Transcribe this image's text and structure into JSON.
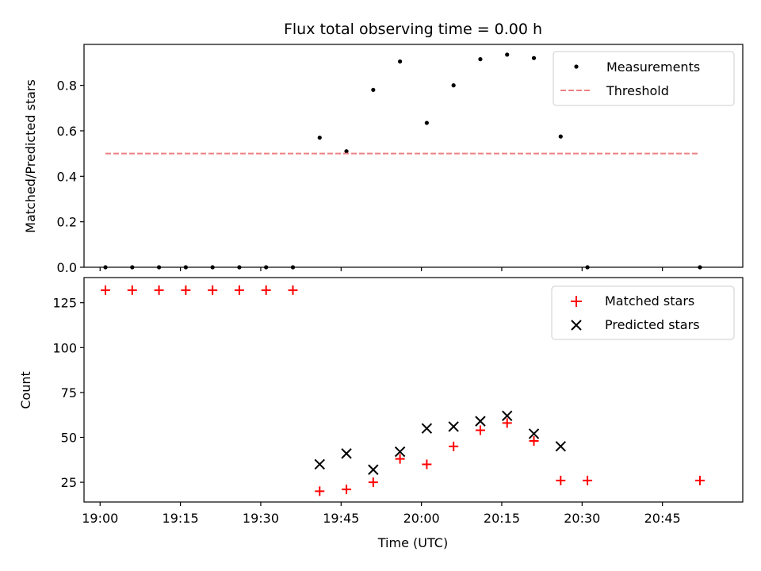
{
  "figure": {
    "title": "Flux total observing time = 0.00 h",
    "xlabel": "Time (UTC)"
  },
  "chart_data": [
    {
      "type": "scatter",
      "title": "Flux total observing time = 0.00 h",
      "xlabel": "",
      "ylabel": "Matched/Predicted stars",
      "xlim": [
        "18:57",
        "21:00"
      ],
      "ylim": [
        0.0,
        0.98
      ],
      "y_ticks": [
        0.0,
        0.2,
        0.4,
        0.6,
        0.8
      ],
      "y_tick_labels": [
        "0.0",
        "0.2",
        "0.4",
        "0.6",
        "0.8"
      ],
      "x_ticks": [
        "19:00",
        "19:15",
        "19:30",
        "19:45",
        "20:00",
        "20:15",
        "20:30",
        "20:45"
      ],
      "x_tick_labels_visible": false,
      "grid": false,
      "legend_position": "top-right",
      "series": [
        {
          "name": "Measurements",
          "marker": "dot",
          "color": "#000000",
          "x": [
            "19:01",
            "19:06",
            "19:11",
            "19:16",
            "19:21",
            "19:26",
            "19:31",
            "19:36",
            "19:41",
            "19:46",
            "19:51",
            "19:56",
            "20:01",
            "20:06",
            "20:11",
            "20:16",
            "20:21",
            "20:26",
            "20:31",
            "20:52"
          ],
          "y": [
            0.0,
            0.0,
            0.0,
            0.0,
            0.0,
            0.0,
            0.0,
            0.0,
            0.57,
            0.51,
            0.78,
            0.905,
            0.635,
            0.8,
            0.915,
            0.935,
            0.92,
            0.575,
            0.0,
            0.0
          ]
        },
        {
          "name": "Threshold",
          "style": "dashed-line",
          "color": "#f08080",
          "x": [
            "19:01",
            "20:52"
          ],
          "y": [
            0.5,
            0.5
          ]
        }
      ]
    },
    {
      "type": "scatter",
      "title": "",
      "xlabel": "Time (UTC)",
      "ylabel": "Count",
      "xlim": [
        "18:57",
        "21:00"
      ],
      "ylim": [
        14,
        139
      ],
      "y_ticks": [
        25,
        50,
        75,
        100,
        125
      ],
      "y_tick_labels": [
        "25",
        "50",
        "75",
        "100",
        "125"
      ],
      "x_ticks": [
        "19:00",
        "19:15",
        "19:30",
        "19:45",
        "20:00",
        "20:15",
        "20:30",
        "20:45"
      ],
      "x_tick_labels": [
        "19:00",
        "19:15",
        "19:30",
        "19:45",
        "20:00",
        "20:15",
        "20:30",
        "20:45"
      ],
      "grid": false,
      "legend_position": "top-right",
      "series": [
        {
          "name": "Matched stars",
          "marker": "plus",
          "color": "#ff0000",
          "x": [
            "19:01",
            "19:06",
            "19:11",
            "19:16",
            "19:21",
            "19:26",
            "19:31",
            "19:36",
            "19:41",
            "19:46",
            "19:51",
            "19:56",
            "20:01",
            "20:06",
            "20:11",
            "20:16",
            "20:21",
            "20:26",
            "20:31",
            "20:52"
          ],
          "y": [
            132,
            132,
            132,
            132,
            132,
            132,
            132,
            132,
            20,
            21,
            25,
            38,
            35,
            45,
            54,
            58,
            48,
            26,
            26,
            26
          ]
        },
        {
          "name": "Predicted stars",
          "marker": "x",
          "color": "#000000",
          "x": [
            "19:41",
            "19:46",
            "19:51",
            "19:56",
            "20:01",
            "20:06",
            "20:11",
            "20:16",
            "20:21",
            "20:26"
          ],
          "y": [
            35,
            41,
            32,
            42,
            55,
            56,
            59,
            62,
            52,
            45
          ]
        }
      ]
    }
  ]
}
